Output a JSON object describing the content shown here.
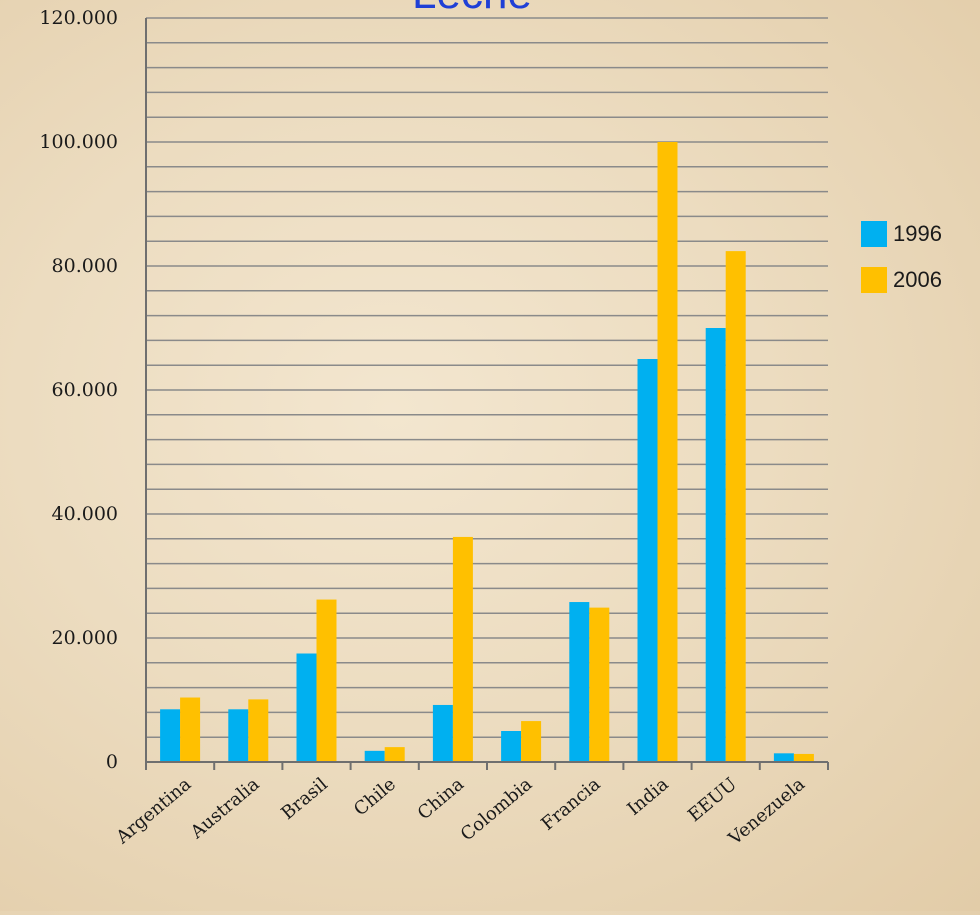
{
  "chart_data": {
    "type": "bar",
    "title": "Leche",
    "categories": [
      "Argentina",
      "Australia",
      "Brasil",
      "Chile",
      "China",
      "Colombia",
      "Francia",
      "India",
      "EEUU",
      "Venezuela"
    ],
    "series": [
      {
        "name": "1996",
        "color": "#00b0f0",
        "values": [
          8500,
          8500,
          17500,
          1800,
          9200,
          5000,
          25800,
          65000,
          70000,
          1400
        ]
      },
      {
        "name": "2006",
        "color": "#ffc000",
        "values": [
          10400,
          10100,
          26200,
          2400,
          36300,
          6600,
          24900,
          100000,
          82400,
          1300
        ]
      }
    ],
    "yticks": [
      "0",
      "20.000",
      "40.000",
      "60.000",
      "80.000",
      "100.000",
      "120.000"
    ],
    "ylim": [
      0,
      120000
    ],
    "grid": true,
    "legend_position": "right",
    "title_color": "#1f3fd6"
  }
}
